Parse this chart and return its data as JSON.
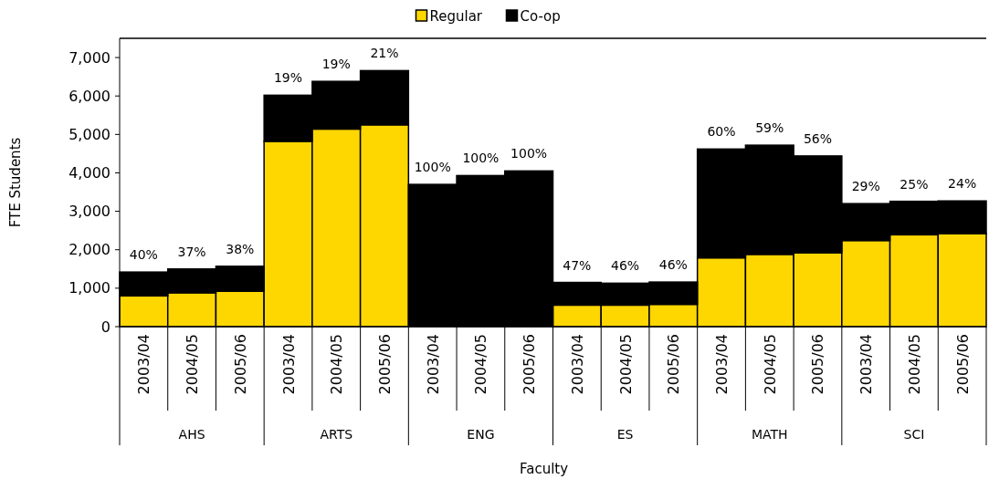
{
  "chart_data": {
    "type": "bar",
    "stacked": true,
    "xlabel": "Faculty",
    "ylabel": "FTE Students",
    "legend": "top",
    "categories": [
      "2003/04",
      "2004/05",
      "2005/06",
      "2003/04",
      "2004/05",
      "2005/06",
      "2003/04",
      "2004/05",
      "2005/06",
      "2003/04",
      "2004/05",
      "2005/06",
      "2003/04",
      "2004/05",
      "2005/06",
      "2003/04",
      "2004/05",
      "2005/06"
    ],
    "annotations": [
      "AHS",
      "ARTS",
      "ENG",
      "ES",
      "MATH",
      "SCI",
      "40%",
      "37%",
      "38%",
      "19%",
      "19%",
      "21%",
      "100%",
      "100%",
      "100%",
      "47%",
      "46%",
      "46%",
      "60%",
      "59%",
      "56%",
      "29%",
      "25%",
      "24%"
    ],
    "series": [
      {
        "name": "Regular",
        "color": "#ffd700",
        "values": [
          800,
          880,
          920,
          4820,
          5140,
          5250,
          0,
          0,
          0,
          560,
          560,
          580,
          1790,
          1880,
          1920,
          2240,
          2390,
          2420
        ]
      },
      {
        "name": "Co-op",
        "color": "#000000",
        "values": [
          620,
          620,
          650,
          1200,
          1240,
          1410,
          3700,
          3930,
          4050,
          590,
          570,
          580,
          2830,
          2840,
          2520,
          960,
          870,
          850
        ]
      }
    ],
    "ylim": [
      0,
      7500
    ],
    "yticks": [
      {
        "value": 0,
        "label": "0"
      },
      {
        "value": 1000,
        "label": "1,000"
      },
      {
        "value": 2000,
        "label": "2,000"
      },
      {
        "value": 3000,
        "label": "3,000"
      },
      {
        "value": 4000,
        "label": "4,000"
      },
      {
        "value": 5000,
        "label": "5,000"
      },
      {
        "value": 6000,
        "label": "6,000"
      },
      {
        "value": 7000,
        "label": "7,000"
      }
    ],
    "grid": false
  }
}
